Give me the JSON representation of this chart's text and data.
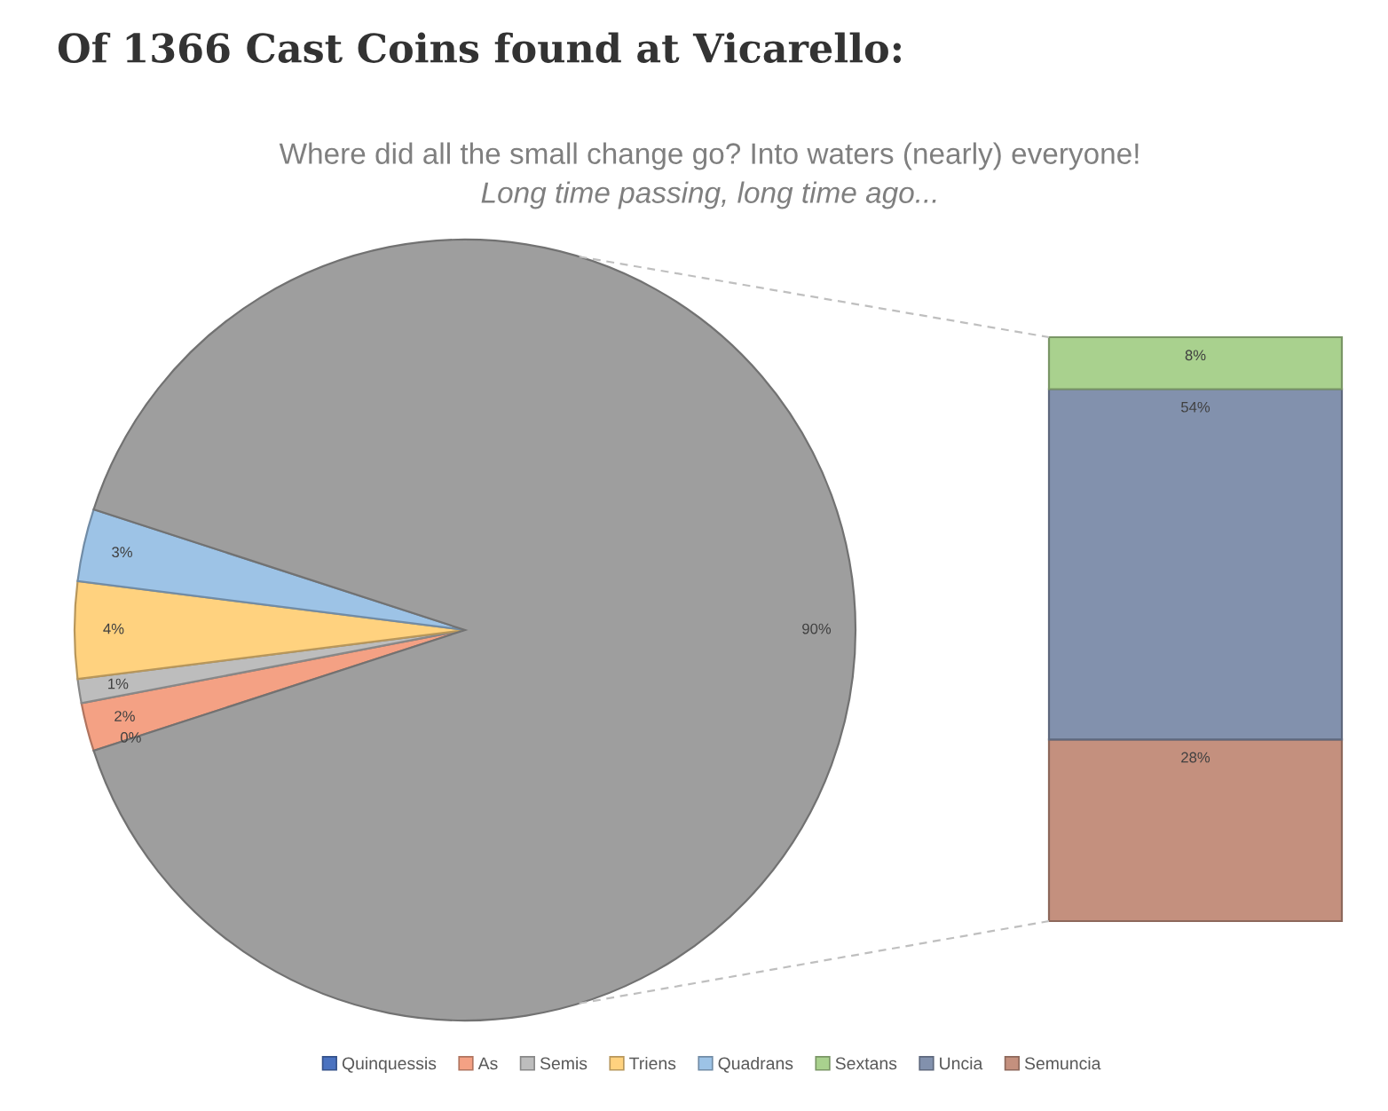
{
  "chart_data": [
    {
      "type": "pie",
      "title": "Of 1366 Cast Coins found at Vicarello:",
      "subtitle": "Where did all the small change go? Into waters (nearly) everyone!",
      "annotations": [
        "Long time passing, long time ago..."
      ],
      "categories": [
        "Quinquessis",
        "As",
        "Semis",
        "Triens",
        "Quadrans",
        null
      ],
      "values": [
        0,
        2,
        1,
        4,
        3,
        90
      ],
      "colors": [
        "#4a72c0",
        "#f4a184",
        "#bdbdbd",
        "#ffd27f",
        "#9dc3e6",
        "#9e9e9e"
      ],
      "value_labels": [
        "0%",
        "2%",
        "1%",
        "4%",
        "3%",
        "90%"
      ],
      "legend": "bottom"
    },
    {
      "type": "bar",
      "stacked": true,
      "categories": [
        null
      ],
      "series": [
        {
          "name": "Semuncia",
          "color": "#c4907e",
          "values": [
            28
          ],
          "value_labels": [
            "28%"
          ]
        },
        {
          "name": "Uncia",
          "color": "#8291ad",
          "values": [
            54
          ],
          "value_labels": [
            "54%"
          ]
        },
        {
          "name": "Sextans",
          "color": "#a9d18e",
          "values": [
            8
          ],
          "value_labels": [
            "8%"
          ]
        }
      ],
      "ylim": [
        0,
        90
      ],
      "tick_labels": false,
      "legend": "bottom"
    }
  ]
}
